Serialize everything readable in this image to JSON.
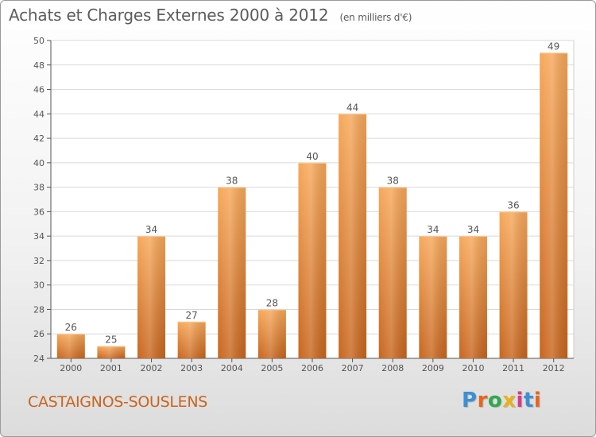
{
  "header": {
    "title": "Achats et Charges Externes 2000 à 2012",
    "subtitle": "(en milliers d'€)"
  },
  "footer": {
    "commune": "CASTAIGNOS-SOUSLENS",
    "brand_letters": [
      "P",
      "r",
      "o",
      "x",
      "i",
      "t",
      "i"
    ],
    "brand_colors": [
      "#3b8fd4",
      "#e8641c",
      "#2fa84f",
      "#e8b21c",
      "#d83a8a",
      "#3b8fd4",
      "#e8641c"
    ]
  },
  "chart_data": {
    "type": "bar",
    "categories": [
      "2000",
      "2001",
      "2002",
      "2003",
      "2004",
      "2005",
      "2006",
      "2007",
      "2008",
      "2009",
      "2010",
      "2011",
      "2012"
    ],
    "values": [
      26,
      25,
      34,
      27,
      38,
      28,
      40,
      44,
      38,
      34,
      34,
      36,
      49
    ],
    "title": "Achats et Charges Externes 2000 à 2012",
    "ylim": [
      24,
      50
    ],
    "yticks": [
      24,
      26,
      28,
      30,
      32,
      34,
      36,
      38,
      40,
      42,
      44,
      46,
      48,
      50
    ],
    "grid": true,
    "colors": {
      "bar_top": "#f7a85a",
      "bar_bottom": "#c8661e",
      "grid": "#d9d9d9",
      "axis": "#555555"
    }
  }
}
